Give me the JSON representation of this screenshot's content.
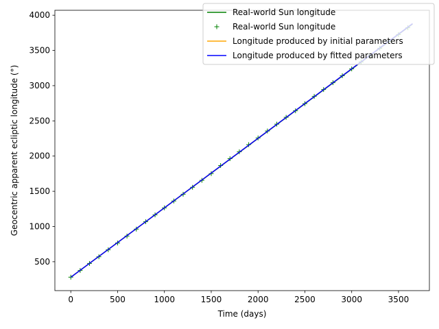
{
  "chart_data": {
    "type": "line",
    "title": "",
    "xlabel": "Time (days)",
    "ylabel": "Geocentric apparent ecliptic longitude (°)",
    "xlim": [
      -170,
      3830
    ],
    "ylim": [
      90,
      4070
    ],
    "xticks": [
      0,
      500,
      1000,
      1500,
      2000,
      2500,
      3000,
      3500
    ],
    "yticks": [
      500,
      1000,
      1500,
      2000,
      2500,
      3000,
      3500,
      4000
    ],
    "grid": false,
    "legend_position": "top-right",
    "colors": {
      "real_line": "#008000",
      "real_markers": "#008000",
      "initial": "#ffa500",
      "fitted": "#0000ff"
    },
    "series": [
      {
        "name": "Real-world Sun longitude",
        "style": "line",
        "color": "#008000",
        "x": [
          0,
          3650
        ],
        "y": [
          280,
          3875
        ]
      },
      {
        "name": "Real-world Sun longitude",
        "style": "markers",
        "marker": "+",
        "color": "#008000",
        "x": [
          0,
          100,
          200,
          300,
          400,
          500,
          600,
          700,
          800,
          900,
          1000,
          1100,
          1200,
          1300,
          1400,
          1500,
          1600,
          1700,
          1800,
          1900,
          2000,
          2100,
          2200,
          2300,
          2400,
          2500,
          2600,
          2700,
          2800,
          2900,
          3000,
          3100,
          3200,
          3300,
          3400,
          3500,
          3600
        ],
        "y": [
          281,
          376,
          476,
          571,
          670,
          766,
          865,
          963,
          1068,
          1165,
          1265,
          1362,
          1459,
          1557,
          1655,
          1752,
          1866,
          1963,
          2061,
          2163,
          2258,
          2356,
          2454,
          2551,
          2643,
          2744,
          2848,
          2945,
          3042,
          3141,
          3238,
          3336,
          3433,
          3531,
          3628,
          3726,
          3823
        ]
      },
      {
        "name": "Longitude produced by initial parameters",
        "style": "line",
        "color": "#ffa500",
        "x": [
          0,
          3650
        ],
        "y": [
          280,
          3880
        ]
      },
      {
        "name": "Longitude produced by fitted parameters",
        "style": "line",
        "color": "#0000ff",
        "x": [
          0,
          3650
        ],
        "y": [
          280,
          3880
        ]
      }
    ]
  }
}
